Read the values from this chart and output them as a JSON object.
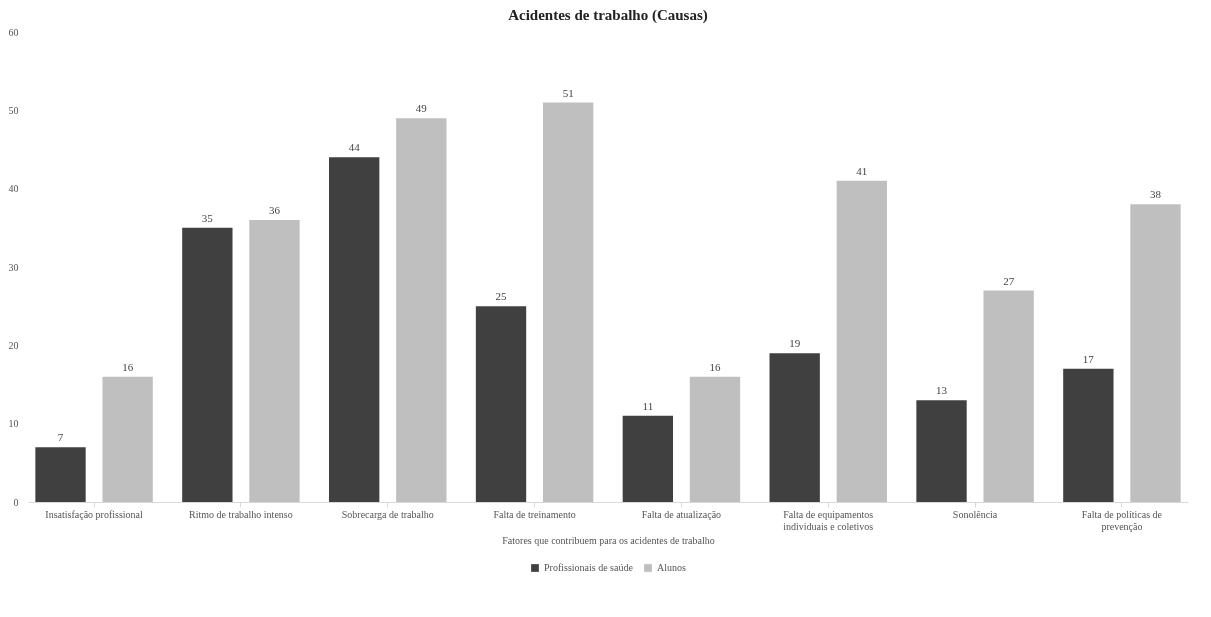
{
  "chart_data": {
    "type": "bar",
    "title": "Acidentes de trabalho (Causas)",
    "xlabel": "Fatores que contribuem para os acidentes de trabalho",
    "categories": [
      "Insatisfação profissional",
      "Ritmo de trabalho intenso",
      "Sobrecarga de trabalho",
      "Falta de treinamento",
      "Falta de atualização",
      "Falta de equipamentos individuais e coletivos",
      "Sonolência",
      "Falta de políticas de prevenção"
    ],
    "series": [
      {
        "name": "Profissionais de saúde",
        "color": "#404040",
        "values": [
          7,
          35,
          44,
          25,
          11,
          19,
          13,
          17
        ]
      },
      {
        "name": "Alunos",
        "color": "#bfbfbf",
        "values": [
          16,
          36,
          49,
          51,
          16,
          41,
          27,
          38
        ]
      }
    ],
    "ylim": [
      0,
      60
    ],
    "yticks": [
      0,
      10,
      20,
      30,
      40,
      50,
      60
    ],
    "grid": false,
    "legend": "bottom",
    "data_labels": true
  }
}
